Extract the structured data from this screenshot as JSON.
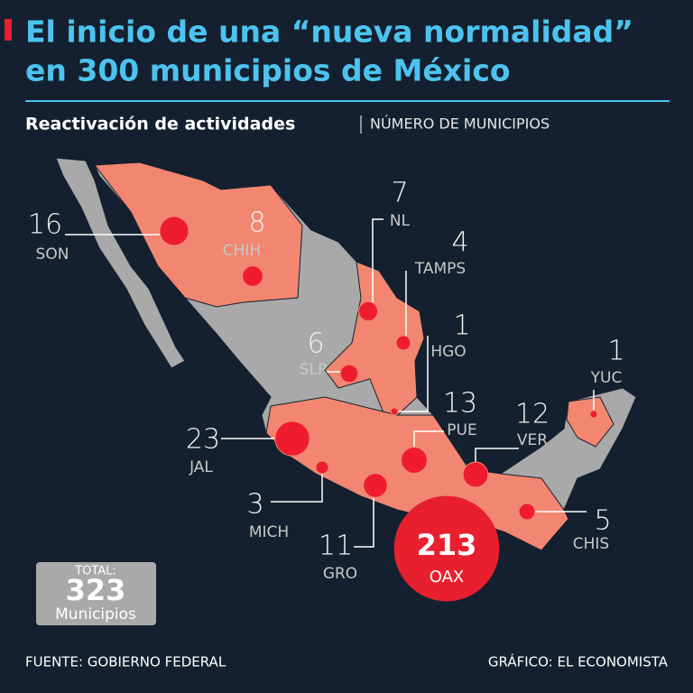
{
  "header": {
    "title_line1": "El inicio de una “nueva normalidad”",
    "title_line2": "en 300 municipios de México",
    "subtitle": "Reactivación de actividades",
    "unit": "NÚMERO DE MUNICIPIOS"
  },
  "states": [
    {
      "label": "SON",
      "value": 16
    },
    {
      "label": "CHIH",
      "value": 8
    },
    {
      "label": "NL",
      "value": 7
    },
    {
      "label": "TAMPS",
      "value": 4
    },
    {
      "label": "HGO",
      "value": 1
    },
    {
      "label": "SLP",
      "value": 6
    },
    {
      "label": "YUC",
      "value": 1
    },
    {
      "label": "PUE",
      "value": 13
    },
    {
      "label": "VER",
      "value": 12
    },
    {
      "label": "JAL",
      "value": 23
    },
    {
      "label": "MICH",
      "value": 3
    },
    {
      "label": "GRO",
      "value": 11
    },
    {
      "label": "OAX",
      "value": 213
    },
    {
      "label": "CHIS",
      "value": 5
    }
  ],
  "total": {
    "label": "TOTAL:",
    "value": 323,
    "unit": "Municipios"
  },
  "footer": {
    "source": "FUENTE: GOBIERNO FEDERAL",
    "credit": "GRÁFICO: EL ECONOMISTA"
  }
}
